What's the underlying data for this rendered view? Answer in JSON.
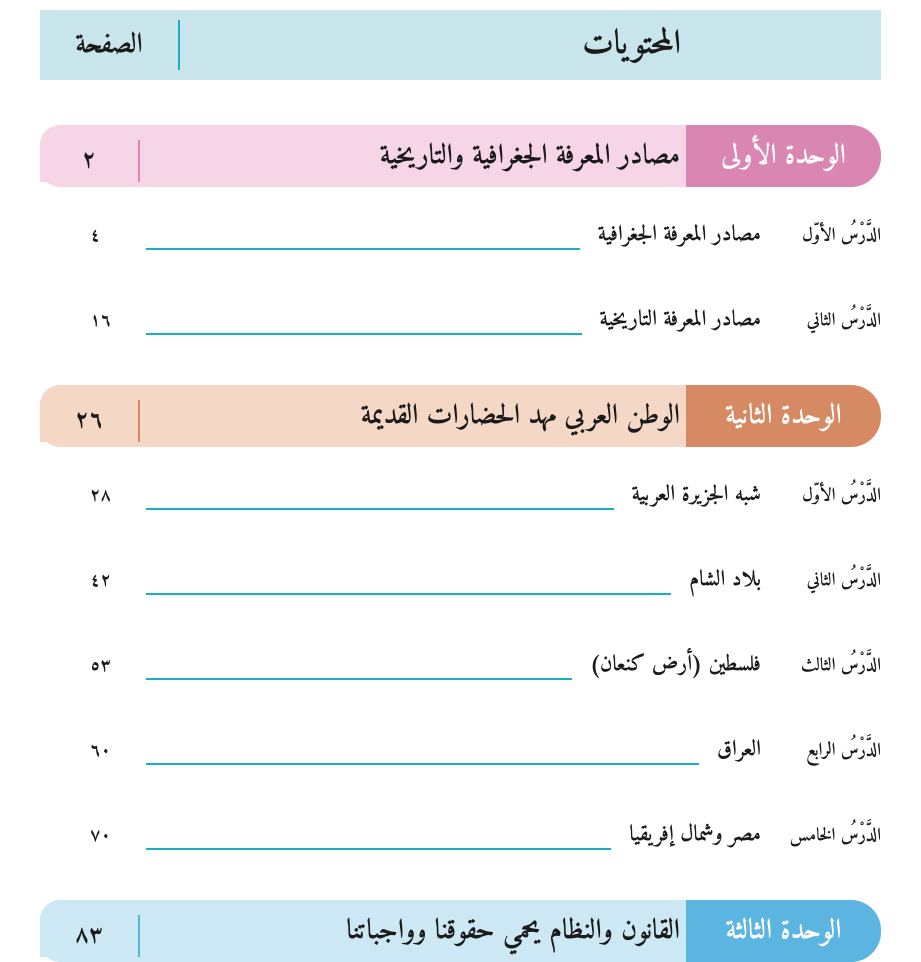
{
  "header": {
    "title": "المحتويات",
    "page_label": "الصفحة"
  },
  "units": [
    {
      "label": "الوحدة الأولى",
      "title": "مصادر المعرفة الجغرافية والتاريخية",
      "page": "٢",
      "label_bg": "#d986b2",
      "title_bg": "#f6d6e6",
      "lessons": [
        {
          "label": "الدَّرْسُ الأوّل",
          "title": "مصادر المعرفة الجغرافية",
          "page": "٤"
        },
        {
          "label": "الدَّرْسُ الثاني",
          "title": "مصادر المعرفة التاريخية",
          "page": "١٦"
        }
      ]
    },
    {
      "label": "الوحدة الثانية",
      "title": "الوطن العربي مهد الحضارات القديمة",
      "page": "٢٦",
      "label_bg": "#d68a63",
      "title_bg": "#f4d8c5",
      "lessons": [
        {
          "label": "الدَّرْسُ الأوّل",
          "title": "شبه الجزيرة العربية",
          "page": "٢٨"
        },
        {
          "label": "الدَّرْسُ الثاني",
          "title": "بلاد الشام",
          "page": "٤٢"
        },
        {
          "label": "الدَّرْسُ الثالث",
          "title": "فلسطين (أرض كنعان)",
          "page": "٥٣"
        },
        {
          "label": "الدَّرْسُ الرابع",
          "title": "العراق",
          "page": "٦٠"
        },
        {
          "label": "الدَّرْسُ الخامس",
          "title": "مصر وشمال إفريقيا",
          "page": "٧٠"
        }
      ]
    },
    {
      "label": "الوحدة الثالثة",
      "title": "القانون والنظام يحمي حقوقنا وواجباتنا",
      "page": "٨٣",
      "label_bg": "#5bb5e0",
      "title_bg": "#cce8f5",
      "lessons": []
    }
  ],
  "colors": {
    "header_bg": "#c7e5ea",
    "leader_line": "#1ab0c4",
    "text": "#1a1a1a"
  }
}
